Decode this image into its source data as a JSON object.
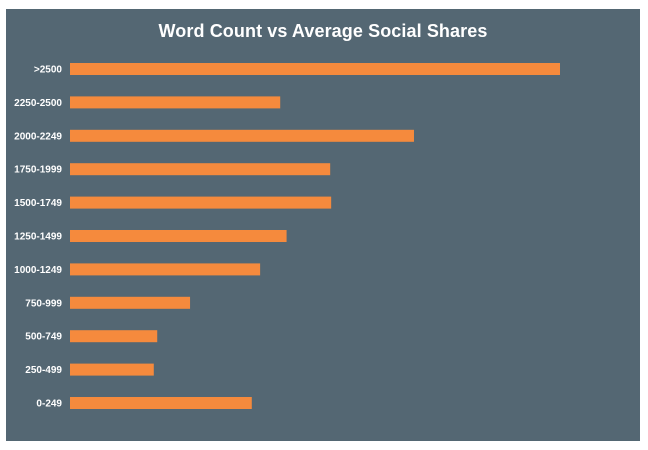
{
  "colors": {
    "background": "#546773",
    "bar": "#F58A3D",
    "text": "#FFFFFF"
  },
  "chart_data": {
    "type": "bar",
    "orientation": "horizontal",
    "title": "Word Count vs Average Social Shares",
    "xlabel": "",
    "ylabel": "",
    "grid": false,
    "legend": "none",
    "categories": [
      ">2500",
      "2250-2500",
      "2000-2249",
      "1750-1999",
      "1500-1749",
      "1250-1499",
      "1000-1249",
      "750-999",
      "500-749",
      "250-499",
      "0-249"
    ],
    "values": [
      100,
      42.9,
      70.2,
      53.1,
      53.3,
      44.2,
      38.8,
      24.5,
      17.8,
      17.1,
      37.1
    ],
    "xlim": [
      0,
      100
    ]
  }
}
